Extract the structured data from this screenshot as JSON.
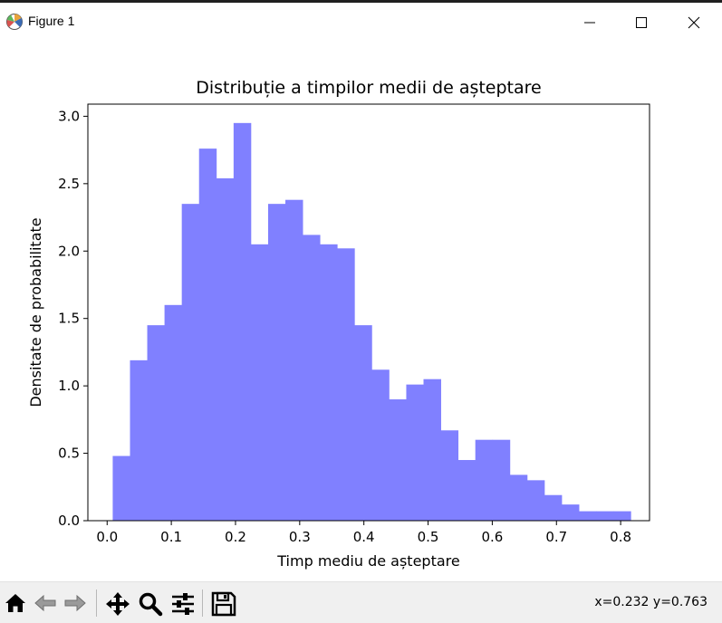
{
  "window": {
    "title": "Figure 1",
    "app_icon": "matplotlib-logo",
    "controls": [
      "minimize-icon",
      "maximize-icon",
      "close-icon"
    ]
  },
  "toolbar": {
    "buttons": [
      "home-icon",
      "back-arrow-icon",
      "forward-arrow-icon",
      "pan-icon",
      "zoom-icon",
      "configure-subplots-icon",
      "save-icon"
    ],
    "coords": "x=0.232 y=0.763"
  },
  "chart_data": {
    "type": "bar",
    "title": "Distribuție a timpilor medii de așteptare",
    "xlabel": "Timp mediu de așteptare",
    "ylabel": "Densitate de probabilitate",
    "xlim": [
      -0.03,
      0.845
    ],
    "ylim": [
      0.0,
      3.09
    ],
    "xticks": [
      0.0,
      0.1,
      0.2,
      0.3,
      0.4,
      0.5,
      0.6,
      0.7,
      0.8
    ],
    "xtick_labels": [
      "0.0",
      "0.1",
      "0.2",
      "0.3",
      "0.4",
      "0.5",
      "0.6",
      "0.7",
      "0.8"
    ],
    "yticks": [
      0.0,
      0.5,
      1.0,
      1.5,
      2.0,
      2.5,
      3.0
    ],
    "ytick_labels": [
      "0.0",
      "0.5",
      "1.0",
      "1.5",
      "2.0",
      "2.5",
      "3.0"
    ],
    "grid": false,
    "bar_color": "#8080ff",
    "bin_edges": [
      0.0087,
      0.0356,
      0.0625,
      0.0894,
      0.1163,
      0.1432,
      0.1701,
      0.197,
      0.2239,
      0.2508,
      0.2777,
      0.3046,
      0.3315,
      0.3584,
      0.3853,
      0.4122,
      0.4391,
      0.466,
      0.4929,
      0.5198,
      0.5467,
      0.5736,
      0.6005,
      0.6274,
      0.6543,
      0.6812,
      0.7081,
      0.735,
      0.7619,
      0.7888,
      0.8157
    ],
    "values": [
      0.48,
      1.19,
      1.45,
      1.6,
      2.35,
      2.76,
      2.54,
      2.95,
      2.05,
      2.35,
      2.38,
      2.12,
      2.05,
      2.02,
      1.45,
      1.12,
      0.9,
      1.01,
      1.05,
      0.67,
      0.45,
      0.6,
      0.6,
      0.34,
      0.3,
      0.19,
      0.12,
      0.07,
      0.07,
      0.07
    ]
  }
}
